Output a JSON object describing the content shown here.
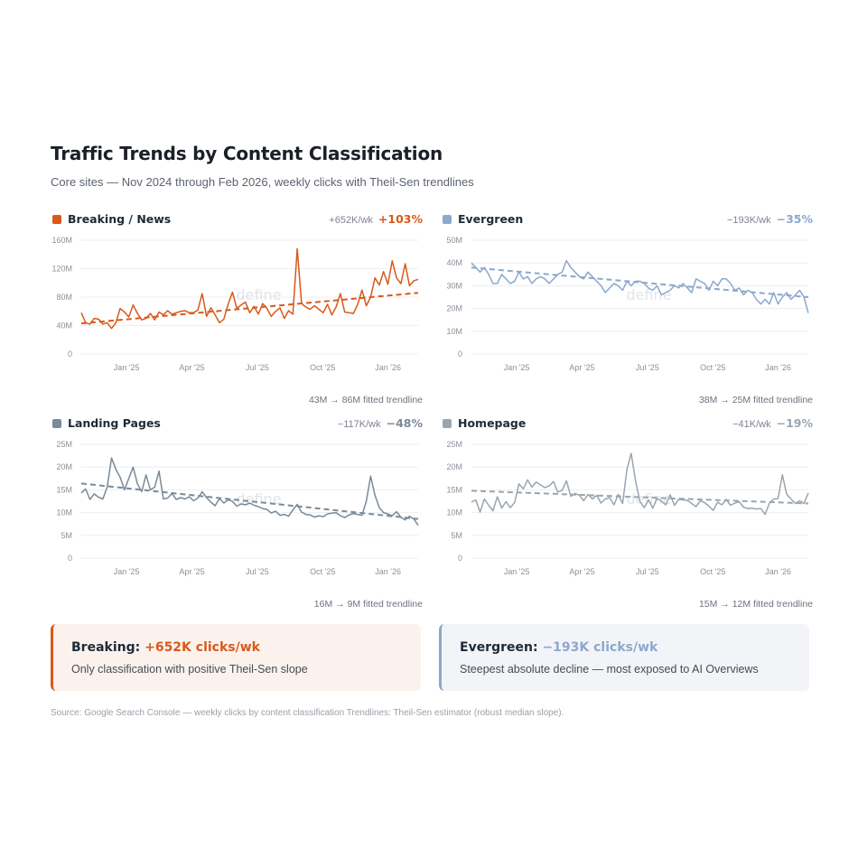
{
  "header": {
    "title": "Traffic Trends by Content Classification",
    "subtitle": "Core sites — Nov 2024 through Feb 2026, weekly clicks with Theil-Sen trendlines"
  },
  "watermark": "define",
  "chart_data": [
    {
      "type": "line",
      "title": "Breaking / News",
      "color": "#d9591a",
      "slope_label": "+652K/wk",
      "pct_change": "+103%",
      "fitted_label": "43M → 86M fitted trendline",
      "y_unit": "M",
      "ylim": [
        0,
        160
      ],
      "yticks": [
        "0",
        "40M",
        "80M",
        "120M",
        "160M"
      ],
      "x_range": [
        "2024-11-04",
        "2026-02-16"
      ],
      "xticks": [
        {
          "date": "2025-01-06",
          "label": "Jan '25"
        },
        {
          "date": "2025-04-07",
          "label": "Apr '25"
        },
        {
          "date": "2025-07-07",
          "label": "Jul '25"
        },
        {
          "date": "2025-10-06",
          "label": "Oct '25"
        },
        {
          "date": "2026-01-05",
          "label": "Jan '26"
        }
      ],
      "trend": [
        43,
        86
      ],
      "values": [
        58,
        44,
        42,
        50,
        49,
        42,
        44,
        36,
        44,
        64,
        59,
        52,
        69,
        57,
        48,
        50,
        57,
        48,
        59,
        55,
        61,
        56,
        58,
        60,
        61,
        58,
        58,
        62,
        85,
        53,
        65,
        55,
        44,
        49,
        70,
        87,
        64,
        69,
        73,
        58,
        67,
        56,
        71,
        64,
        53,
        60,
        65,
        50,
        61,
        56,
        148,
        71,
        66,
        63,
        68,
        63,
        58,
        70,
        55,
        66,
        85,
        59,
        58,
        57,
        70,
        90,
        68,
        80,
        107,
        97,
        116,
        98,
        131,
        107,
        99,
        127,
        96,
        103,
        105
      ],
      "grid": true,
      "legend": "none"
    },
    {
      "type": "line",
      "title": "Evergreen",
      "color": "#8ca8cc",
      "slope_label": "−193K/wk",
      "pct_change": "−35%",
      "fitted_label": "38M → 25M fitted trendline",
      "y_unit": "M",
      "ylim": [
        0,
        50
      ],
      "yticks": [
        "0",
        "10M",
        "20M",
        "30M",
        "40M",
        "50M"
      ],
      "x_range": [
        "2024-11-04",
        "2026-02-16"
      ],
      "xticks": [
        {
          "date": "2025-01-06",
          "label": "Jan '25"
        },
        {
          "date": "2025-04-07",
          "label": "Apr '25"
        },
        {
          "date": "2025-07-07",
          "label": "Jul '25"
        },
        {
          "date": "2025-10-06",
          "label": "Oct '25"
        },
        {
          "date": "2026-01-05",
          "label": "Jan '26"
        }
      ],
      "trend": [
        38,
        25
      ],
      "values": [
        40,
        38,
        36,
        38,
        35,
        31,
        31,
        35,
        33,
        31,
        32,
        36,
        33,
        34,
        31,
        33,
        34,
        33,
        31,
        33,
        35,
        36,
        41,
        38,
        36,
        34,
        33,
        36,
        34,
        32,
        30,
        27,
        29,
        31,
        30,
        28,
        32,
        30,
        32,
        32,
        31,
        29,
        28,
        30,
        26,
        27,
        28,
        30,
        29,
        31,
        29,
        27,
        33,
        32,
        31,
        28,
        32,
        30,
        33,
        33,
        31,
        28,
        29,
        26,
        28,
        27,
        24,
        22,
        24,
        22,
        27,
        22,
        25,
        27,
        24,
        26,
        28,
        25,
        18
      ],
      "grid": true,
      "legend": "none"
    },
    {
      "type": "line",
      "title": "Landing Pages",
      "color": "#7a8a98",
      "slope_label": "−117K/wk",
      "pct_change": "−48%",
      "fitted_label": "16M → 9M fitted trendline",
      "y_unit": "M",
      "ylim": [
        0,
        25
      ],
      "yticks": [
        "0",
        "5M",
        "10M",
        "15M",
        "20M",
        "25M"
      ],
      "x_range": [
        "2024-11-04",
        "2026-02-16"
      ],
      "xticks": [
        {
          "date": "2025-01-06",
          "label": "Jan '25"
        },
        {
          "date": "2025-04-07",
          "label": "Apr '25"
        },
        {
          "date": "2025-07-07",
          "label": "Jul '25"
        },
        {
          "date": "2025-10-06",
          "label": "Oct '25"
        },
        {
          "date": "2026-01-05",
          "label": "Jan '26"
        }
      ],
      "trend": [
        16.4,
        8.6
      ],
      "values": [
        14.3,
        15.2,
        12.9,
        14.1,
        13.4,
        13.0,
        15.6,
        22.0,
        19.5,
        17.8,
        15.0,
        17.5,
        20.0,
        16.3,
        14.6,
        18.3,
        15.0,
        15.6,
        19.1,
        13.0,
        13.2,
        14.2,
        12.9,
        13.3,
        13.0,
        13.5,
        12.6,
        13.2,
        14.6,
        13.3,
        12.3,
        11.5,
        13.1,
        12.1,
        12.8,
        12.5,
        11.4,
        11.9,
        11.7,
        12.1,
        11.6,
        11.3,
        10.9,
        10.7,
        9.9,
        10.3,
        9.4,
        9.6,
        9.2,
        10.6,
        11.8,
        10.1,
        9.6,
        9.5,
        9.0,
        9.3,
        9.1,
        9.7,
        9.9,
        10.0,
        9.3,
        8.9,
        9.5,
        9.8,
        9.6,
        9.4,
        12.5,
        18.0,
        13.8,
        11.1,
        10.0,
        9.7,
        9.3,
        10.2,
        9.0,
        8.4,
        9.2,
        8.6,
        7.2
      ],
      "grid": true,
      "legend": "none"
    },
    {
      "type": "line",
      "title": "Homepage",
      "color": "#9aa5ae",
      "slope_label": "−41K/wk",
      "pct_change": "−19%",
      "fitted_label": "15M → 12M fitted trendline",
      "y_unit": "M",
      "ylim": [
        0,
        25
      ],
      "yticks": [
        "0",
        "5M",
        "10M",
        "15M",
        "20M",
        "25M"
      ],
      "x_range": [
        "2024-11-04",
        "2026-02-16"
      ],
      "xticks": [
        {
          "date": "2025-01-06",
          "label": "Jan '25"
        },
        {
          "date": "2025-04-07",
          "label": "Apr '25"
        },
        {
          "date": "2025-07-07",
          "label": "Jul '25"
        },
        {
          "date": "2025-10-06",
          "label": "Oct '25"
        },
        {
          "date": "2026-01-05",
          "label": "Jan '26"
        }
      ],
      "trend": [
        14.8,
        12.0
      ],
      "values": [
        12.3,
        12.8,
        10.1,
        13.0,
        11.6,
        10.4,
        13.5,
        11.0,
        12.4,
        11.1,
        12.2,
        16.3,
        15.2,
        17.2,
        15.6,
        16.7,
        16.1,
        15.5,
        15.9,
        16.8,
        14.5,
        14.9,
        17.0,
        13.6,
        14.2,
        13.8,
        12.6,
        14.0,
        13.0,
        13.8,
        12.1,
        13.0,
        13.3,
        11.7,
        14.0,
        12.0,
        19.5,
        23.0,
        17.0,
        12.5,
        11.1,
        12.8,
        11.0,
        13.1,
        12.5,
        11.7,
        13.9,
        11.6,
        12.9,
        12.8,
        12.7,
        12.0,
        11.3,
        12.6,
        12.2,
        11.4,
        10.5,
        12.3,
        11.7,
        12.9,
        11.6,
        12.1,
        12.4,
        11.2,
        10.9,
        11.0,
        10.8,
        10.9,
        9.6,
        12.1,
        13.0,
        13.1,
        18.3,
        14.0,
        13.0,
        12.0,
        12.6,
        12.0,
        14.3
      ],
      "grid": true,
      "legend": "none"
    }
  ],
  "callouts": [
    {
      "label": "Breaking:",
      "value": "+652K clicks/wk",
      "text": "Only classification with positive Theil-Sen slope",
      "accent": "#d9591a",
      "bg": "#fbf2ee"
    },
    {
      "label": "Evergreen:",
      "value": "−193K clicks/wk",
      "text": "Steepest absolute decline — most exposed to AI Overviews",
      "accent": "#8ca8cc",
      "bg": "#f2f4f8"
    }
  ],
  "footer": {
    "source": "Source: Google Search Console — weekly clicks by content classification   Trendlines: Theil-Sen estimator (robust median slope)."
  }
}
